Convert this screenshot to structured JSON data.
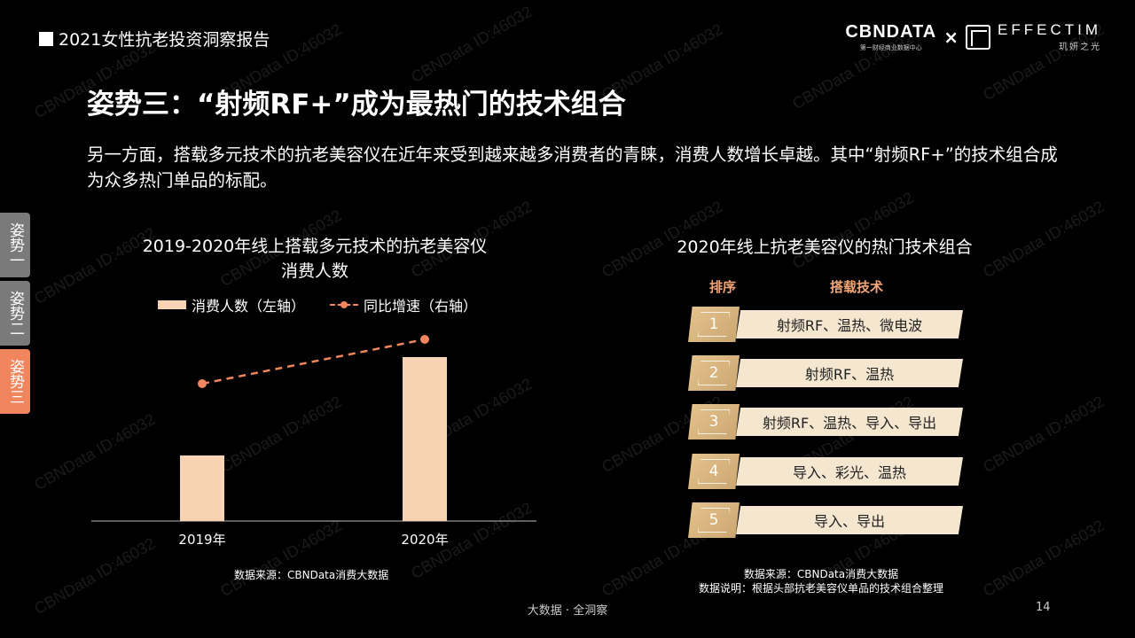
{
  "header": {
    "report_title": "2021女性抗老投资洞察报告"
  },
  "logos": {
    "cbn_main": "CBNDATA",
    "cbn_sub": "第一财经商业数据中心",
    "cross": "×",
    "effectim_main": "EFFECTIM",
    "effectim_sub": "玑妍之光"
  },
  "page_title": "姿势三：“射频RF+”成为最热门的技术组合",
  "intro": "另一方面，搭载多元技术的抗老美容仪在近年来受到越来越多消费者的青睐，消费人数增长卓越。其中“射频RF+”的技术组合成为众多热门单品的标配。",
  "side_tabs": [
    {
      "label": "姿势一",
      "active": false
    },
    {
      "label": "姿势二",
      "active": false
    },
    {
      "label": "姿势三",
      "active": true
    }
  ],
  "left_chart": {
    "title_line1": "2019-2020年线上搭载多元技术的抗老美容仪",
    "title_line2": "消费人数",
    "legend_bar": "消费人数（左轴）",
    "legend_line": "同比增速（右轴）",
    "source": "数据来源：CBNData消费大数据"
  },
  "chart_data": {
    "type": "bar",
    "categories": [
      "2019年",
      "2020年"
    ],
    "series": [
      {
        "name": "消费人数（左轴）",
        "type": "bar",
        "axis": "left",
        "values": [
          1.0,
          2.5
        ]
      },
      {
        "name": "同比增速（右轴）",
        "type": "line",
        "axis": "right",
        "values": [
          1.0,
          1.65
        ]
      }
    ],
    "note": "axes unlabeled; values are relative estimates",
    "colors": {
      "bar": "#f7d3b3",
      "line": "#f0855e"
    },
    "grid": false
  },
  "right_chart": {
    "title": "2020年线上抗老美容仪的热门技术组合",
    "header_rank": "排序",
    "header_tech": "搭载技术",
    "rows": [
      {
        "rank": "1",
        "tech": "射频RF、温热、微电波"
      },
      {
        "rank": "2",
        "tech": "射频RF、温热"
      },
      {
        "rank": "3",
        "tech": "射频RF、温热、导入、导出"
      },
      {
        "rank": "4",
        "tech": "导入、彩光、温热"
      },
      {
        "rank": "5",
        "tech": "导入、导出"
      }
    ],
    "source_line1": "数据来源：CBNData消费大数据",
    "source_line2": "数据说明：根据头部抗老美容仪单品的技术组合整理"
  },
  "footer": {
    "center": "大数据 · 全洞察",
    "page_number": "14"
  },
  "watermark": "CBNData ID:46032"
}
